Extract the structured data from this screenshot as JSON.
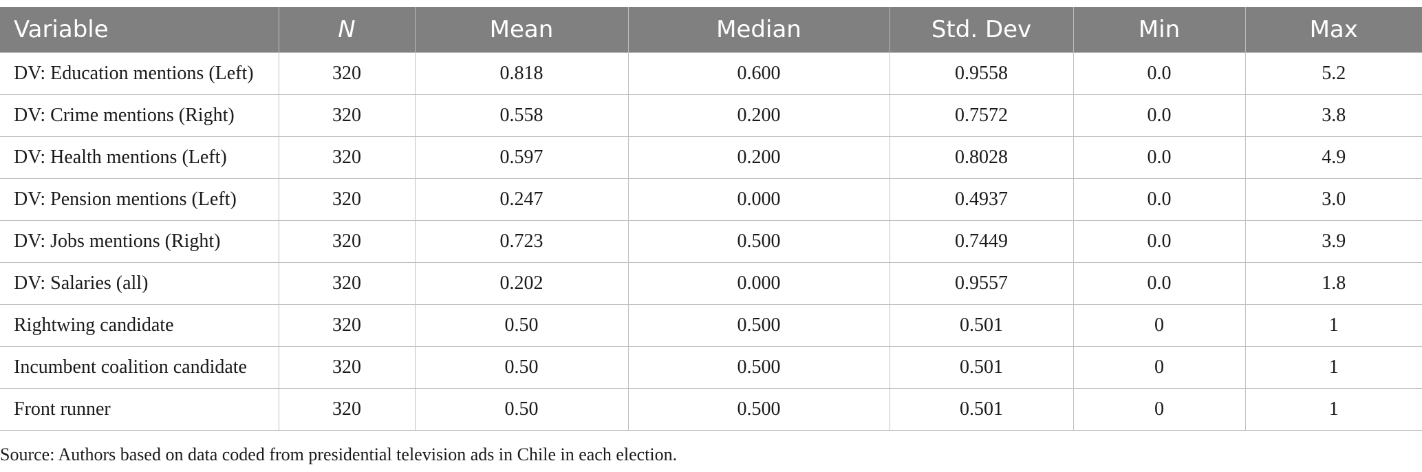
{
  "table": {
    "headers": [
      "Variable",
      "N",
      "Mean",
      "Median",
      "Std. Dev",
      "Min",
      "Max"
    ],
    "rows": [
      [
        "DV: Education mentions (Left)",
        "320",
        "0.818",
        "0.600",
        "0.9558",
        "0.0",
        "5.2"
      ],
      [
        "DV: Crime mentions (Right)",
        "320",
        "0.558",
        "0.200",
        "0.7572",
        "0.0",
        "3.8"
      ],
      [
        "DV: Health mentions (Left)",
        "320",
        "0.597",
        "0.200",
        "0.8028",
        "0.0",
        "4.9"
      ],
      [
        "DV: Pension mentions (Left)",
        "320",
        "0.247",
        "0.000",
        "0.4937",
        "0.0",
        "3.0"
      ],
      [
        "DV: Jobs mentions (Right)",
        "320",
        "0.723",
        "0.500",
        "0.7449",
        "0.0",
        "3.9"
      ],
      [
        "DV: Salaries (all)",
        "320",
        "0.202",
        "0.000",
        "0.9557",
        "0.0",
        "1.8"
      ],
      [
        "Rightwing candidate",
        "320",
        "0.50",
        "0.500",
        "0.501",
        "0",
        "1"
      ],
      [
        "Incumbent coalition candidate",
        "320",
        "0.50",
        "0.500",
        "0.501",
        "0",
        "1"
      ],
      [
        "Front runner",
        "320",
        "0.50",
        "0.500",
        "0.501",
        "0",
        "1"
      ]
    ]
  },
  "note": "Source: Authors based on data coded from presidential television ads in Chile in each election.",
  "colors": {
    "header_bg": "#808080",
    "header_text": "#ffffff",
    "grid": "#bfbfbf"
  }
}
